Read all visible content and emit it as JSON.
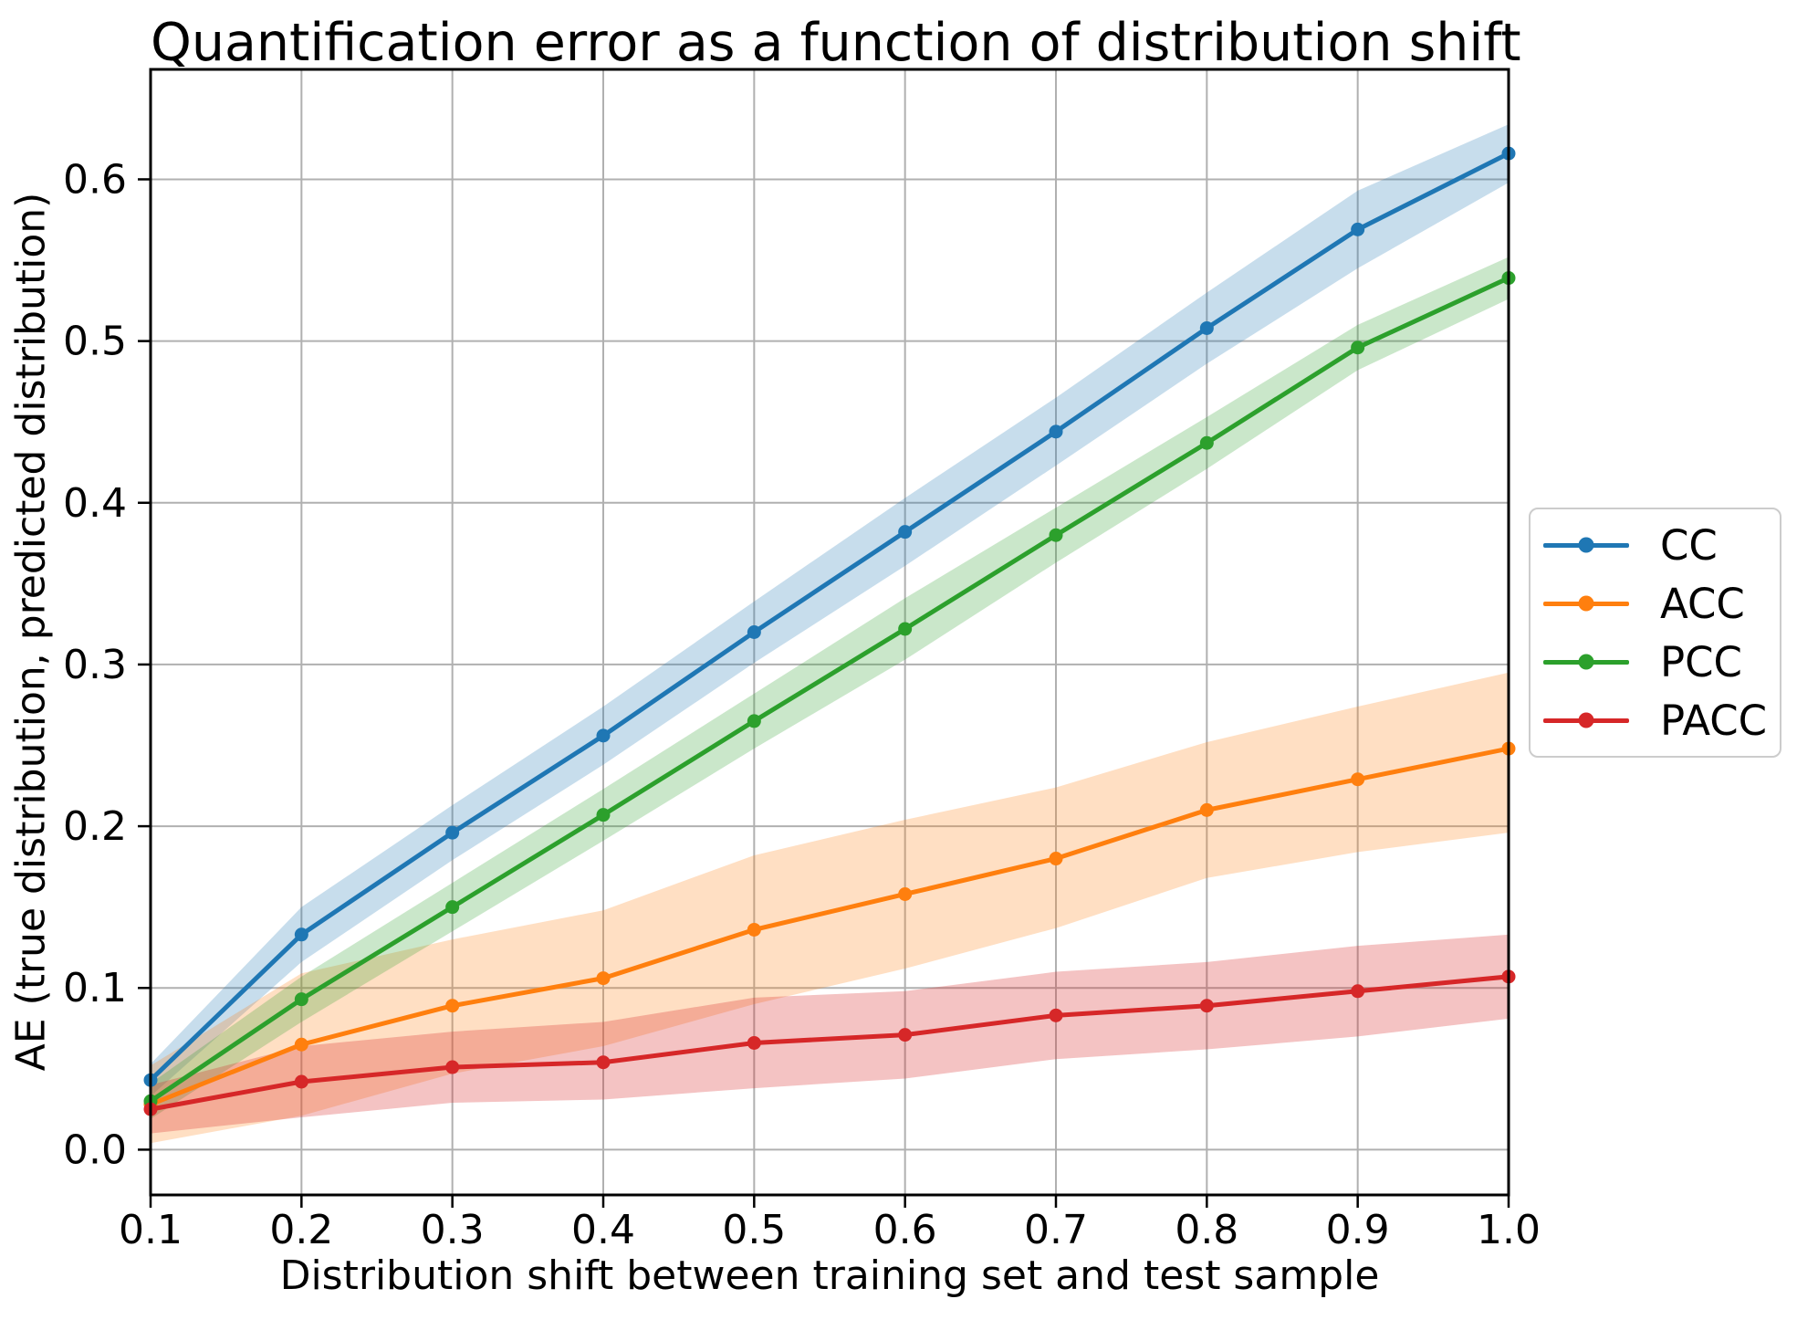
{
  "chart_data": {
    "type": "line",
    "title": "Quantification error as a function of distribution shift",
    "xlabel": "Distribution shift between training set and test sample",
    "ylabel": "AE (true distribution, predicted distribution)",
    "x": [
      0.1,
      0.2,
      0.3,
      0.4,
      0.5,
      0.6,
      0.7,
      0.8,
      0.9,
      1.0
    ],
    "x_tick_labels": [
      "0.1",
      "0.2",
      "0.3",
      "0.4",
      "0.5",
      "0.6",
      "0.7",
      "0.8",
      "0.9",
      "1.0"
    ],
    "y_ticks": [
      0.0,
      0.1,
      0.2,
      0.3,
      0.4,
      0.5,
      0.6
    ],
    "y_tick_labels": [
      "0.0",
      "0.1",
      "0.2",
      "0.3",
      "0.4",
      "0.5",
      "0.6"
    ],
    "xlim": [
      0.1,
      1.0
    ],
    "ylim": [
      -0.028,
      0.668
    ],
    "grid": true,
    "grid_color": "#b0b0b0",
    "axis_color": "#000000",
    "background": "#ffffff",
    "legend": {
      "position": "outside-right-center",
      "border_color": "#cccccc",
      "background": "#ffffff",
      "entries": [
        "CC",
        "ACC",
        "PCC",
        "PACC"
      ]
    },
    "series": [
      {
        "name": "CC",
        "color": "#1f77b4",
        "marker": "circle",
        "band_opacity": 0.25,
        "values": [
          0.043,
          0.133,
          0.196,
          0.256,
          0.32,
          0.382,
          0.444,
          0.508,
          0.569,
          0.616
        ],
        "band_lower": [
          0.033,
          0.116,
          0.179,
          0.238,
          0.301,
          0.361,
          0.423,
          0.486,
          0.545,
          0.598
        ],
        "band_upper": [
          0.053,
          0.15,
          0.213,
          0.274,
          0.339,
          0.403,
          0.465,
          0.53,
          0.593,
          0.634
        ]
      },
      {
        "name": "ACC",
        "color": "#ff7f0e",
        "marker": "circle",
        "band_opacity": 0.25,
        "values": [
          0.028,
          0.065,
          0.089,
          0.106,
          0.136,
          0.158,
          0.18,
          0.21,
          0.229,
          0.248
        ],
        "band_lower": [
          0.004,
          0.021,
          0.047,
          0.064,
          0.09,
          0.112,
          0.137,
          0.168,
          0.184,
          0.196
        ],
        "band_upper": [
          0.052,
          0.109,
          0.13,
          0.148,
          0.182,
          0.204,
          0.224,
          0.252,
          0.274,
          0.295
        ]
      },
      {
        "name": "PCC",
        "color": "#2ca02c",
        "marker": "circle",
        "band_opacity": 0.25,
        "values": [
          0.03,
          0.093,
          0.15,
          0.207,
          0.265,
          0.322,
          0.38,
          0.437,
          0.496,
          0.539
        ],
        "band_lower": [
          0.019,
          0.079,
          0.135,
          0.191,
          0.248,
          0.303,
          0.363,
          0.421,
          0.482,
          0.526
        ],
        "band_upper": [
          0.041,
          0.107,
          0.165,
          0.223,
          0.282,
          0.341,
          0.397,
          0.453,
          0.51,
          0.552
        ]
      },
      {
        "name": "PACC",
        "color": "#d62728",
        "marker": "circle",
        "band_opacity": 0.28,
        "values": [
          0.025,
          0.042,
          0.051,
          0.054,
          0.066,
          0.071,
          0.083,
          0.089,
          0.098,
          0.107
        ],
        "band_lower": [
          0.01,
          0.02,
          0.029,
          0.031,
          0.038,
          0.044,
          0.056,
          0.062,
          0.07,
          0.081
        ],
        "band_upper": [
          0.04,
          0.064,
          0.073,
          0.079,
          0.094,
          0.098,
          0.11,
          0.116,
          0.126,
          0.133
        ]
      }
    ]
  }
}
